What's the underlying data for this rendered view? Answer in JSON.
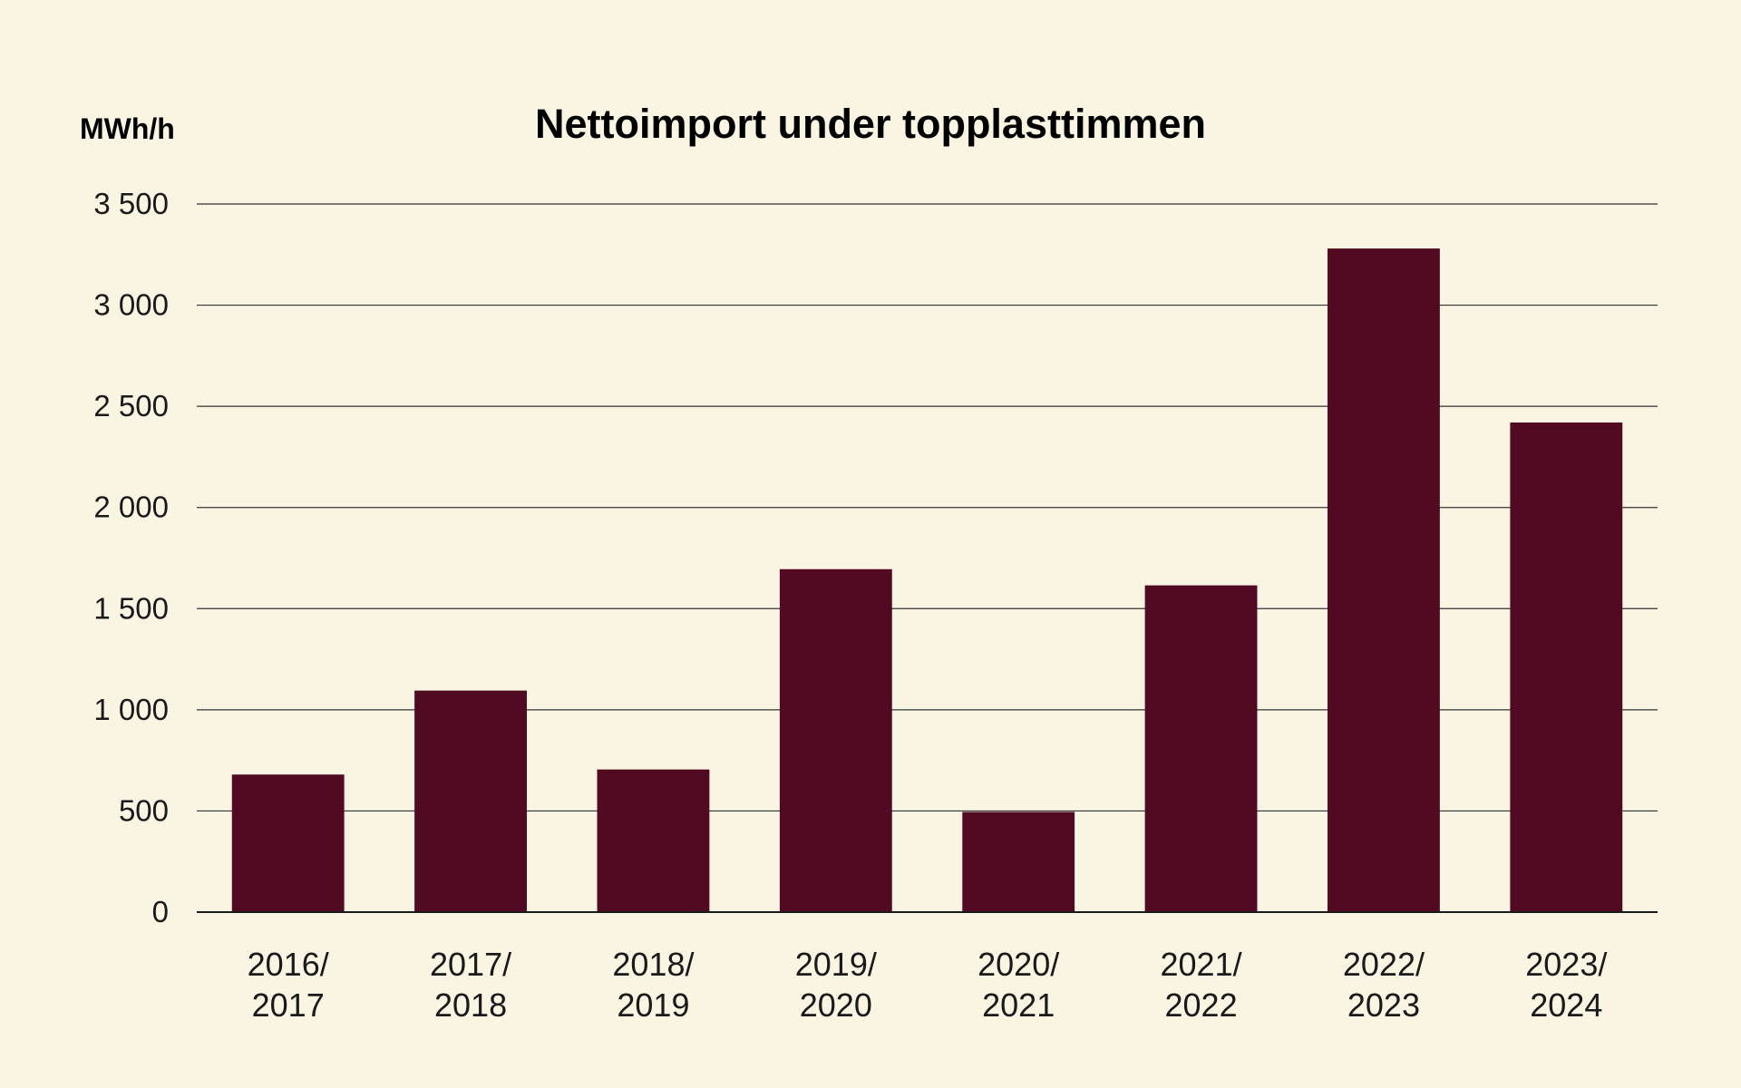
{
  "chart_data": {
    "type": "bar",
    "title": "Nettoimport under topplasttimmen",
    "ylabel": "MWh/h",
    "xlabel": "",
    "ylim": [
      0,
      3500
    ],
    "yticks": [
      0,
      500,
      1000,
      1500,
      2000,
      2500,
      3000,
      3500
    ],
    "ytick_labels": [
      "0",
      "500",
      "1 000",
      "1 500",
      "2 000",
      "2 500",
      "3 000",
      "3 500"
    ],
    "categories": [
      [
        "2016/",
        "2017"
      ],
      [
        "2017/",
        "2018"
      ],
      [
        "2018/",
        "2019"
      ],
      [
        "2019/",
        "2020"
      ],
      [
        "2020/",
        "2021"
      ],
      [
        "2021/",
        "2022"
      ],
      [
        "2022/",
        "2023"
      ],
      [
        "2023/",
        "2024"
      ]
    ],
    "values": [
      680,
      1095,
      705,
      1695,
      495,
      1615,
      3280,
      2420
    ],
    "grid": true,
    "legend": "none",
    "colors": {
      "bar": "#510a22",
      "background": "#faf4e3",
      "text": "#1a1a1a"
    }
  }
}
